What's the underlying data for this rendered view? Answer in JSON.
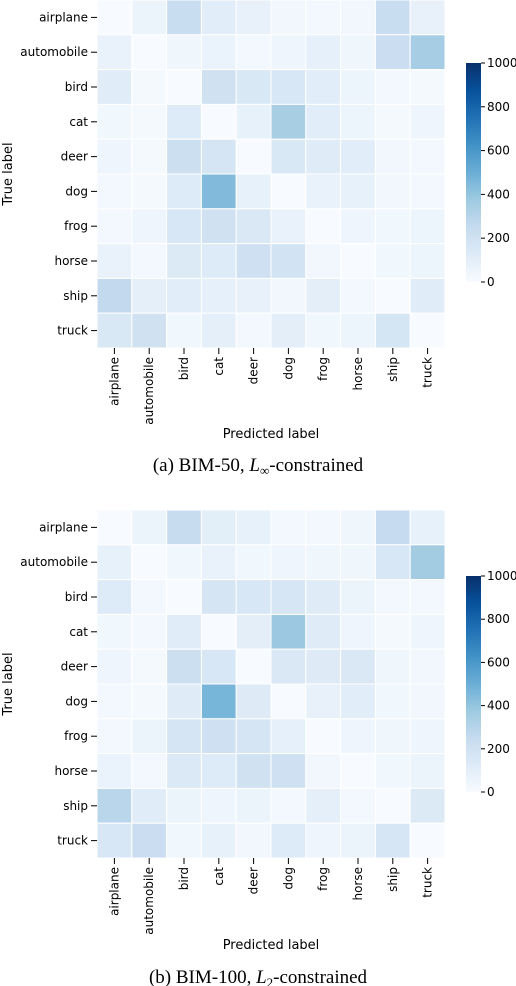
{
  "chart_data": [
    {
      "type": "heatmap",
      "caption_prefix": "(a) BIM-50,",
      "caption_norm": "L",
      "caption_norm_sub": "∞",
      "caption_suffix": "-constrained",
      "xlabel": "Predicted label",
      "ylabel": "True label",
      "categories": [
        "airplane",
        "automobile",
        "bird",
        "cat",
        "deer",
        "dog",
        "frog",
        "horse",
        "ship",
        "truck"
      ],
      "colorbar": {
        "range": [
          0,
          1000
        ],
        "ticks": [
          0,
          200,
          400,
          600,
          800,
          1000
        ],
        "low_color": "#ffffff",
        "high_color": "#08306b"
      },
      "values": [
        [
          0,
          55,
          235,
          110,
          75,
          30,
          25,
          30,
          235,
          75
        ],
        [
          70,
          0,
          40,
          65,
          25,
          45,
          85,
          40,
          225,
          350
        ],
        [
          115,
          15,
          0,
          200,
          150,
          160,
          110,
          50,
          20,
          15
        ],
        [
          35,
          15,
          130,
          0,
          80,
          345,
          110,
          50,
          15,
          45
        ],
        [
          45,
          15,
          220,
          170,
          0,
          150,
          120,
          110,
          30,
          25
        ],
        [
          25,
          15,
          130,
          445,
          80,
          0,
          70,
          80,
          30,
          25
        ],
        [
          20,
          45,
          160,
          200,
          145,
          70,
          0,
          45,
          35,
          50
        ],
        [
          70,
          20,
          135,
          130,
          210,
          190,
          30,
          0,
          35,
          50
        ],
        [
          260,
          95,
          110,
          85,
          75,
          30,
          100,
          25,
          0,
          115
        ],
        [
          150,
          200,
          35,
          95,
          25,
          100,
          35,
          50,
          175,
          0
        ]
      ]
    },
    {
      "type": "heatmap",
      "caption_prefix": "(b) BIM-100,",
      "caption_norm": "L",
      "caption_norm_sub": "2",
      "caption_suffix": "-constrained",
      "xlabel": "Predicted label",
      "ylabel": "True label",
      "categories": [
        "airplane",
        "automobile",
        "bird",
        "cat",
        "deer",
        "dog",
        "frog",
        "horse",
        "ship",
        "truck"
      ],
      "colorbar": {
        "range": [
          0,
          1000
        ],
        "ticks": [
          0,
          200,
          400,
          600,
          800,
          1000
        ],
        "low_color": "#ffffff",
        "high_color": "#08306b"
      },
      "values": [
        [
          0,
          60,
          240,
          105,
          80,
          25,
          25,
          40,
          250,
          80
        ],
        [
          80,
          0,
          35,
          70,
          35,
          45,
          40,
          40,
          160,
          360
        ],
        [
          130,
          20,
          0,
          170,
          160,
          165,
          120,
          55,
          25,
          25
        ],
        [
          35,
          20,
          115,
          0,
          100,
          380,
          120,
          45,
          15,
          45
        ],
        [
          45,
          15,
          220,
          155,
          0,
          145,
          125,
          145,
          40,
          30
        ],
        [
          25,
          15,
          120,
          470,
          125,
          0,
          75,
          110,
          35,
          30
        ],
        [
          25,
          55,
          170,
          210,
          170,
          85,
          0,
          45,
          40,
          45
        ],
        [
          65,
          20,
          140,
          130,
          200,
          210,
          30,
          0,
          35,
          55
        ],
        [
          290,
          115,
          55,
          45,
          55,
          25,
          95,
          25,
          0,
          135
        ],
        [
          160,
          225,
          35,
          80,
          30,
          130,
          45,
          55,
          165,
          0
        ]
      ]
    }
  ]
}
